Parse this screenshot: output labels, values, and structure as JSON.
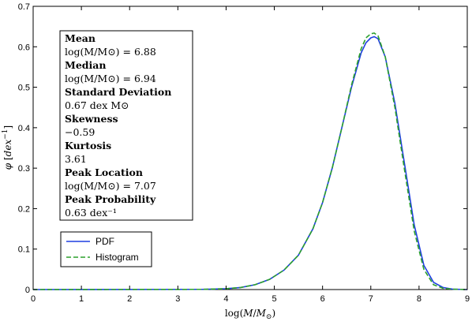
{
  "chart_data": {
    "type": "line",
    "xlabel": "log(M/M⊙)",
    "ylabel": "φ [dex⁻¹]",
    "xlim": [
      0,
      9
    ],
    "ylim": [
      0,
      0.7
    ],
    "xticks": [
      "0",
      "1",
      "2",
      "3",
      "4",
      "5",
      "6",
      "7",
      "8",
      "9"
    ],
    "yticks": [
      "0",
      "0.1",
      "0.2",
      "0.3",
      "0.4",
      "0.5",
      "0.6",
      "0.7"
    ],
    "grid": false,
    "legend_position": "bottom-left",
    "series": [
      {
        "name": "PDF",
        "style": "solid",
        "color": "#1f3fe0",
        "x": [
          0,
          3.5,
          4.0,
          4.3,
          4.6,
          4.9,
          5.2,
          5.5,
          5.8,
          6.0,
          6.2,
          6.4,
          6.6,
          6.8,
          6.9,
          7.0,
          7.07,
          7.15,
          7.3,
          7.5,
          7.7,
          7.9,
          8.1,
          8.3,
          8.5,
          8.7,
          9.0
        ],
        "y": [
          0,
          0.0005,
          0.002,
          0.005,
          0.012,
          0.025,
          0.048,
          0.085,
          0.15,
          0.215,
          0.3,
          0.4,
          0.5,
          0.585,
          0.61,
          0.622,
          0.625,
          0.62,
          0.575,
          0.46,
          0.31,
          0.16,
          0.06,
          0.018,
          0.005,
          0.001,
          0
        ]
      },
      {
        "name": "Histogram",
        "style": "dashed",
        "color": "#2ca02c",
        "x": [
          0,
          3.5,
          4.0,
          4.3,
          4.6,
          4.9,
          5.2,
          5.5,
          5.8,
          6.0,
          6.2,
          6.4,
          6.6,
          6.8,
          6.9,
          7.0,
          7.07,
          7.15,
          7.3,
          7.5,
          7.7,
          7.9,
          8.1,
          8.3,
          8.5,
          8.7,
          9.0
        ],
        "y": [
          0,
          0.0005,
          0.002,
          0.005,
          0.012,
          0.025,
          0.048,
          0.085,
          0.15,
          0.215,
          0.3,
          0.4,
          0.505,
          0.595,
          0.622,
          0.632,
          0.634,
          0.627,
          0.575,
          0.45,
          0.295,
          0.145,
          0.05,
          0.012,
          0.003,
          0.001,
          0
        ]
      }
    ],
    "annotation": {
      "items": [
        {
          "heading": "Mean",
          "value": "log(M/M⊙) = 6.88"
        },
        {
          "heading": "Median",
          "value": "log(M/M⊙) = 6.94"
        },
        {
          "heading": "Standard Deviation",
          "value": "0.67 dex M⊙"
        },
        {
          "heading": "Skewness",
          "value": "−0.59"
        },
        {
          "heading": "Kurtosis",
          "value": "3.61"
        },
        {
          "heading": "Peak Location",
          "value": "log(M/M⊙) = 7.07"
        },
        {
          "heading": "Peak Probability",
          "value": "0.63 dex⁻¹"
        }
      ]
    }
  }
}
